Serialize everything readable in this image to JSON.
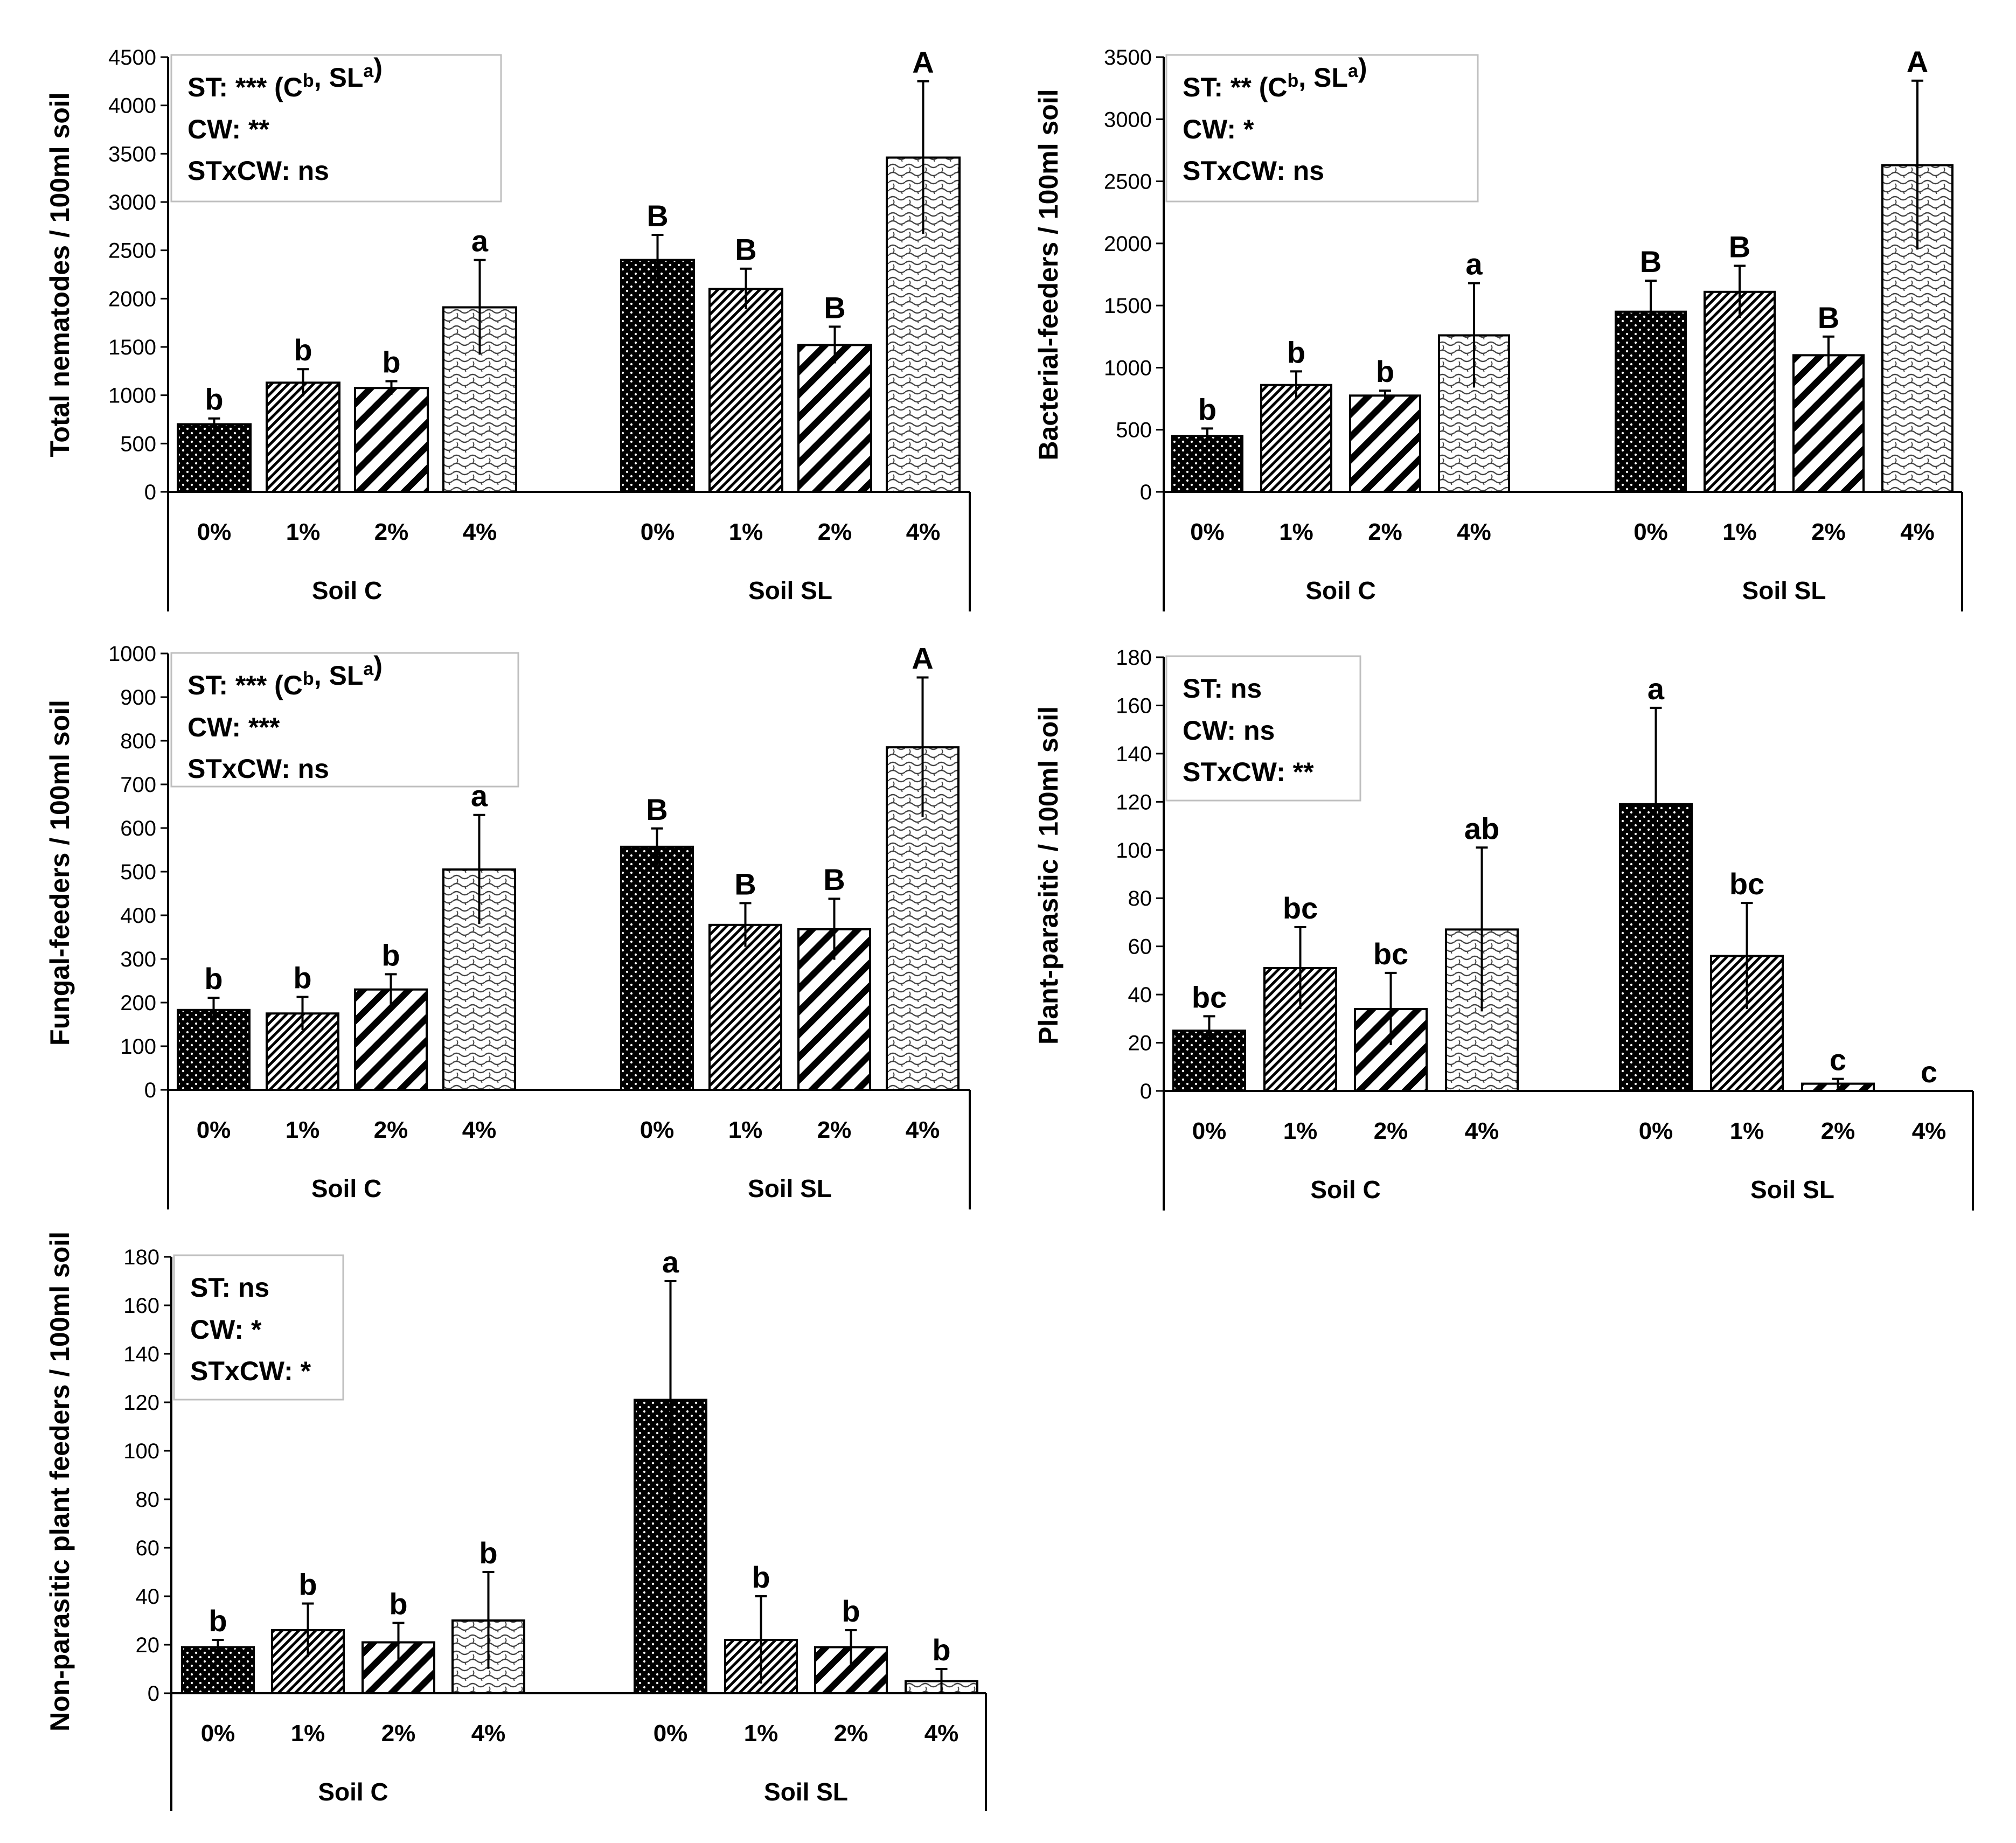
{
  "chart_data": [
    {
      "type": "bar",
      "ylabel": "Total nematodes / 100ml soil",
      "ylim": [
        0,
        4500
      ],
      "yticks": [
        0,
        500,
        1000,
        1500,
        2000,
        2500,
        3000,
        3500,
        4000,
        4500
      ],
      "yticklabels": [
        "0",
        "500",
        "1000",
        "1500",
        "2000",
        "2500",
        "3000",
        "3500",
        "4000",
        "4500"
      ],
      "groups": [
        "Soil C",
        "Soil SL"
      ],
      "categories": [
        "0%",
        "1%",
        "2%",
        "4%"
      ],
      "series": [
        {
          "group": "Soil C",
          "values": [
            700,
            1130,
            1075,
            1910
          ],
          "errors": [
            60,
            140,
            70,
            490
          ],
          "letters": [
            "b",
            "b",
            "b",
            "a"
          ]
        },
        {
          "group": "Soil SL",
          "values": [
            2400,
            2100,
            1520,
            3460
          ],
          "errors": [
            260,
            210,
            190,
            790
          ],
          "letters": [
            "B",
            "B",
            "B",
            "A"
          ]
        }
      ],
      "stats": {
        "st_prefix": "ST: *** (C",
        "st_sup1": "b",
        "st_mid": ", SL",
        "st_sup2": "a",
        "st_suffix": ")",
        "cw": "CW: **",
        "interaction": "STxCW: ns"
      }
    },
    {
      "type": "bar",
      "ylabel": "Bacterial-feeders / 100ml soil",
      "ylim": [
        0,
        3500
      ],
      "yticks": [
        0,
        500,
        1000,
        1500,
        2000,
        2500,
        3000,
        3500
      ],
      "yticklabels": [
        "0",
        "500",
        "1000",
        "1500",
        "2000",
        "2500",
        "3000",
        "3500"
      ],
      "groups": [
        "Soil C",
        "Soil SL"
      ],
      "categories": [
        "0%",
        "1%",
        "2%",
        "4%"
      ],
      "series": [
        {
          "group": "Soil C",
          "values": [
            450,
            860,
            775,
            1260
          ],
          "errors": [
            60,
            110,
            40,
            420
          ],
          "letters": [
            "b",
            "b",
            "b",
            "a"
          ]
        },
        {
          "group": "Soil SL",
          "values": [
            1450,
            1610,
            1100,
            2630
          ],
          "errors": [
            250,
            210,
            150,
            680
          ],
          "letters": [
            "B",
            "B",
            "B",
            "A"
          ]
        }
      ],
      "stats": {
        "st_prefix": "ST: ** (C",
        "st_sup1": "b",
        "st_mid": ", SL",
        "st_sup2": "a",
        "st_suffix": ")",
        "cw": "CW: *",
        "interaction": "STxCW: ns"
      }
    },
    {
      "type": "bar",
      "ylabel": "Fungal-feeders / 100ml soil",
      "ylim": [
        0,
        1000
      ],
      "yticks": [
        0,
        100,
        200,
        300,
        400,
        500,
        600,
        700,
        800,
        900,
        1000
      ],
      "yticklabels": [
        "0",
        "100",
        "200",
        "300",
        "400",
        "500",
        "600",
        "700",
        "800",
        "900",
        "1000"
      ],
      "groups": [
        "Soil C",
        "Soil SL"
      ],
      "categories": [
        "0%",
        "1%",
        "2%",
        "4%"
      ],
      "series": [
        {
          "group": "Soil C",
          "values": [
            183,
            175,
            230,
            505
          ],
          "errors": [
            28,
            38,
            35,
            125
          ],
          "letters": [
            "b",
            "b",
            "b",
            "a"
          ]
        },
        {
          "group": "Soil SL",
          "values": [
            557,
            378,
            368,
            785
          ],
          "errors": [
            42,
            50,
            70,
            160
          ],
          "letters": [
            "B",
            "B",
            "B",
            "A"
          ]
        }
      ],
      "stats": {
        "st_prefix": "ST: *** (C",
        "st_sup1": "b",
        "st_mid": ", SL",
        "st_sup2": "a",
        "st_suffix": ")",
        "cw": "CW: ***",
        "interaction": "STxCW: ns"
      }
    },
    {
      "type": "bar",
      "ylabel": "Plant-parasitic / 100ml soil",
      "ylim": [
        0,
        180
      ],
      "yticks": [
        0,
        20,
        40,
        60,
        80,
        100,
        120,
        140,
        160,
        180
      ],
      "yticklabels": [
        "0",
        "20",
        "40",
        "60",
        "80",
        "100",
        "120",
        "140",
        "160",
        "180"
      ],
      "groups": [
        "Soil C",
        "Soil SL"
      ],
      "categories": [
        "0%",
        "1%",
        "2%",
        "4%"
      ],
      "series": [
        {
          "group": "Soil C",
          "values": [
            25,
            51,
            34,
            67
          ],
          "errors": [
            6,
            17,
            15,
            34
          ],
          "letters": [
            "bc",
            "bc",
            "bc",
            "ab"
          ]
        },
        {
          "group": "Soil SL",
          "values": [
            119,
            56,
            3,
            0
          ],
          "errors": [
            40,
            22,
            2,
            0
          ],
          "letters": [
            "a",
            "bc",
            "c",
            "c"
          ]
        }
      ],
      "stats": {
        "st_prefix": "ST: ns",
        "st_sup1": "",
        "st_mid": "",
        "st_sup2": "",
        "st_suffix": "",
        "cw": "CW: ns",
        "interaction": "STxCW: **"
      }
    },
    {
      "type": "bar",
      "ylabel": "Non-parasitic plant feeders / 100ml soil",
      "ylim": [
        0,
        180
      ],
      "yticks": [
        0,
        20,
        40,
        60,
        80,
        100,
        120,
        140,
        160,
        180
      ],
      "yticklabels": [
        "0",
        "20",
        "40",
        "60",
        "80",
        "100",
        "120",
        "140",
        "160",
        "180"
      ],
      "groups": [
        "Soil C",
        "Soil SL"
      ],
      "categories": [
        "0%",
        "1%",
        "2%",
        "4%"
      ],
      "series": [
        {
          "group": "Soil C",
          "values": [
            19,
            26,
            21,
            30
          ],
          "errors": [
            3,
            11,
            8,
            20
          ],
          "letters": [
            "b",
            "b",
            "b",
            "b"
          ]
        },
        {
          "group": "Soil SL",
          "values": [
            121,
            22,
            19,
            5
          ],
          "errors": [
            49,
            18,
            7,
            5
          ],
          "letters": [
            "a",
            "b",
            "b",
            "b"
          ]
        }
      ],
      "stats": {
        "st_prefix": "ST: ns",
        "st_sup1": "",
        "st_mid": "",
        "st_sup2": "",
        "st_suffix": "",
        "cw": "CW: *",
        "interaction": "STxCW: *"
      }
    }
  ]
}
